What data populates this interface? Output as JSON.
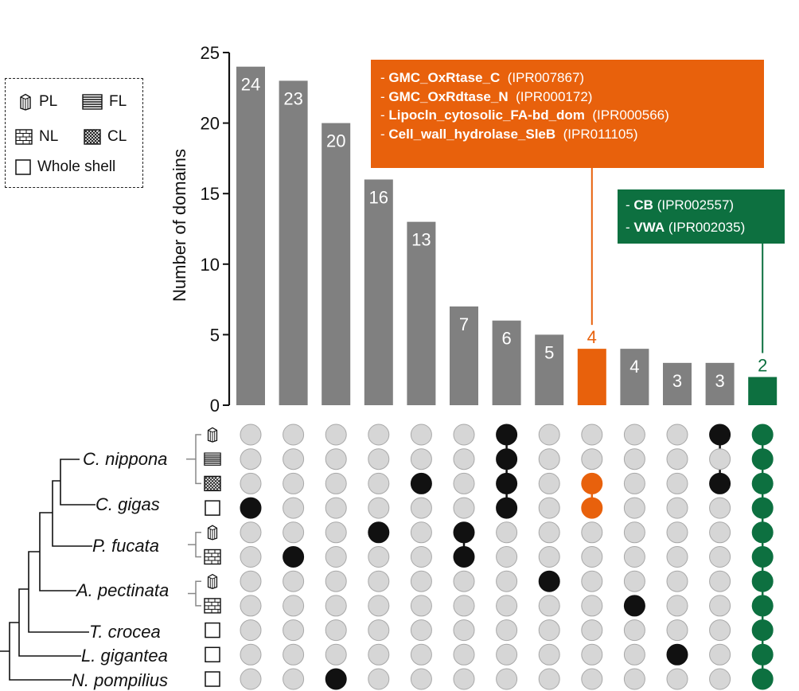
{
  "chart_data": {
    "type": "upset",
    "ylabel": "Number of domains",
    "yticks": [
      0,
      5,
      10,
      15,
      20,
      25
    ],
    "ylim": [
      0,
      25
    ],
    "values": [
      24,
      23,
      20,
      16,
      13,
      7,
      6,
      5,
      4,
      4,
      3,
      3,
      2
    ],
    "value_labels": [
      "24",
      "23",
      "20",
      "16",
      "13",
      "7",
      "6",
      "5",
      "4",
      "4",
      "3",
      "3",
      "2"
    ],
    "highlight": {
      "8": "#e8610c",
      "12": "#0d7040"
    },
    "bar_color": "#808080",
    "rows": [
      {
        "species": "C. nippona",
        "layer": "PL"
      },
      {
        "species": "C. nippona",
        "layer": "FL"
      },
      {
        "species": "C. nippona",
        "layer": "CL"
      },
      {
        "species": "C. gigas",
        "layer": "Whole shell"
      },
      {
        "species": "P. fucata",
        "layer": "PL"
      },
      {
        "species": "P. fucata",
        "layer": "NL"
      },
      {
        "species": "A. pectinata",
        "layer": "PL"
      },
      {
        "species": "A. pectinata",
        "layer": "NL"
      },
      {
        "species": "T. crocea",
        "layer": "Whole shell"
      },
      {
        "species": "L. gigantea",
        "layer": "Whole shell"
      },
      {
        "species": "N. pompilius",
        "layer": "Whole shell"
      }
    ],
    "sets": [
      [
        3
      ],
      [
        5
      ],
      [
        10
      ],
      [
        4
      ],
      [
        2
      ],
      [
        4,
        5
      ],
      [
        0,
        1,
        2,
        3
      ],
      [
        6
      ],
      [
        2,
        3
      ],
      [
        7
      ],
      [
        9
      ],
      [
        0,
        2
      ],
      [
        0,
        1,
        2,
        3,
        4,
        5,
        6,
        7,
        8,
        9,
        10
      ]
    ]
  },
  "species_labels": [
    "C. nippona",
    "C. gigas",
    "P. fucata",
    "A. pectinata",
    "T. crocea",
    "L. gigantea",
    "N. pompilius"
  ],
  "legend": {
    "pl": "PL",
    "fl": "FL",
    "nl": "NL",
    "cl": "CL",
    "whole": "Whole shell"
  },
  "callout_orange": {
    "color": "#e8610c",
    "items": [
      {
        "name": "GMC_OxRtase_C",
        "id": "(IPR007867)"
      },
      {
        "name": "GMC_OxRdtase_N",
        "id": "(IPR000172)"
      },
      {
        "name": "Lipocln_cytosolic_FA-bd_dom",
        "id": "(IPR000566)"
      },
      {
        "name": "Cell_wall_hydrolase_SleB",
        "id": "(IPR011105)"
      }
    ]
  },
  "callout_green": {
    "color": "#0d7040",
    "items": [
      {
        "name": "CB",
        "id": "(IPR002557)"
      },
      {
        "name": "VWA",
        "id": "(IPR002035)"
      }
    ]
  }
}
